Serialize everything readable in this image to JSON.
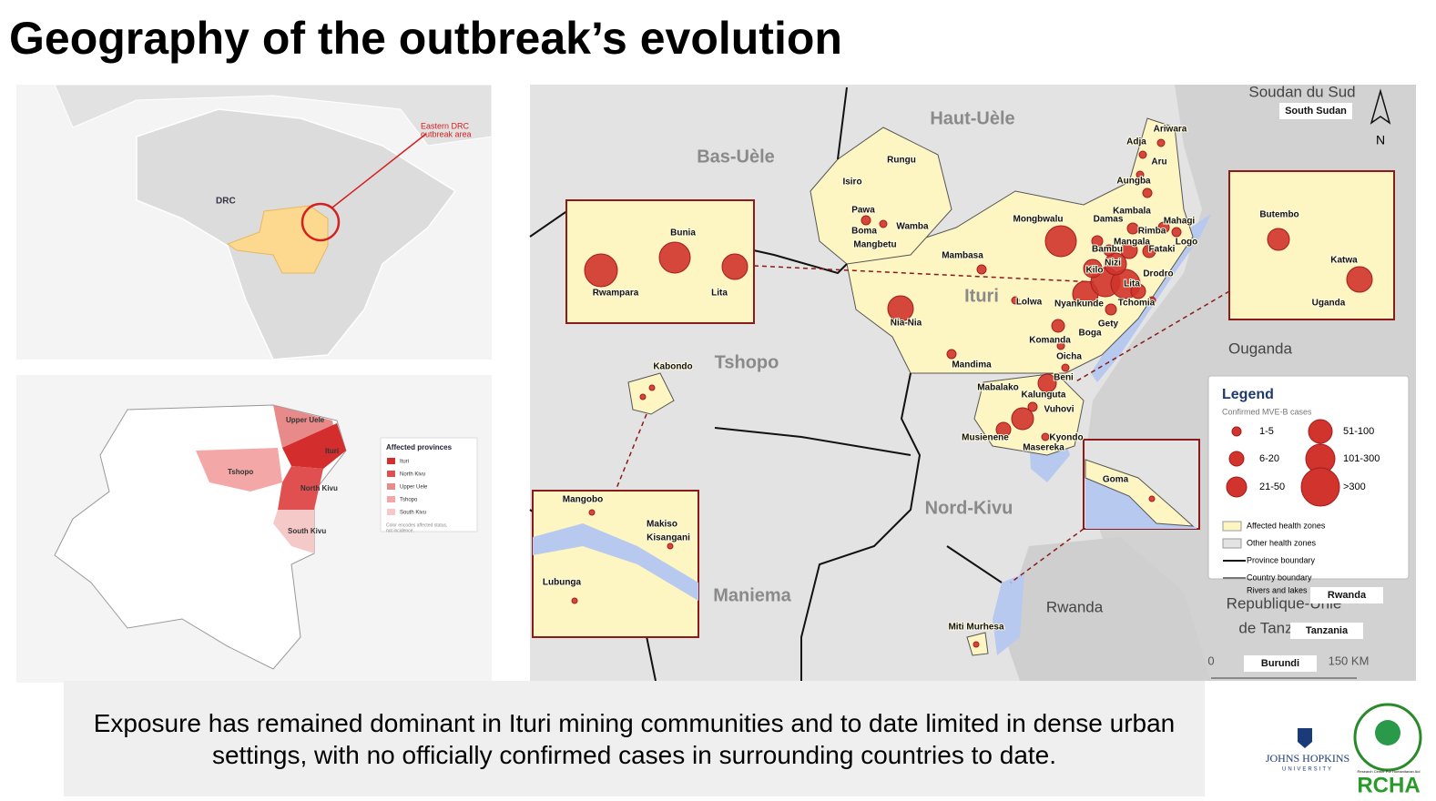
{
  "title": "Geography of the outbreak’s evolution",
  "world_map": {
    "country_label": "DRC",
    "annotation": [
      "Eastern DRC",
      "outbreak area"
    ]
  },
  "province_map": {
    "provinces": [
      "Upper Uele",
      "Ituri",
      "Tshopo",
      "North Kivu",
      "South Kivu"
    ],
    "legend": {
      "title": "Affected provinces",
      "items": [
        "Ituri",
        "North Kivu",
        "Upper Uele",
        "Tshopo",
        "South Kivu"
      ],
      "note": [
        "Color encodes affected status,",
        "not incidence."
      ]
    }
  },
  "main_map": {
    "regions": [
      "Haut-Uèle",
      "Bas-Uèle",
      "Tshopo",
      "Ituri",
      "Nord-Kivu",
      "Maniema"
    ],
    "countries": [
      "Soudan du Sud",
      "Ouganda",
      "Rwanda",
      "Republique-Unie",
      "de Tanz"
    ],
    "country_tags": [
      "South Sudan",
      "Rwanda",
      "Tanzania",
      "Burundi"
    ],
    "health_zones": [
      "Ariwara",
      "Adja",
      "Aru",
      "Aungba",
      "Rungu",
      "Isiro",
      "Pawa",
      "Boma",
      "Wamba",
      "Mangbetu",
      "Kambala",
      "Damas",
      "Mahagi",
      "Mongbwalu",
      "Rimba",
      "Logo",
      "Bambu",
      "Mangala",
      "Fataki",
      "Nizi",
      "Mambasa",
      "Kilo",
      "Drodro",
      "Lita",
      "Lolwa",
      "Nyankunde",
      "Tchomia",
      "Nia-Nia",
      "Gety",
      "Komanda",
      "Boga",
      "Oicha",
      "Mandima",
      "Beni",
      "Mabalako",
      "Kalunguta",
      "Vuhovi",
      "Musienene",
      "Kyondo",
      "Masereka",
      "Kabondo",
      "Miti Murhesa"
    ],
    "insets": {
      "ituri": [
        "Bunia",
        "Rwampara",
        "Lita"
      ],
      "butembo": [
        "Butembo",
        "Katwa",
        "Uganda"
      ],
      "kisangani": [
        "Mangobo",
        "Makiso",
        "Kisangani",
        "Lubunga"
      ],
      "goma": [
        "Goma"
      ]
    },
    "north": "N",
    "scale": [
      "0",
      "150 KM"
    ],
    "legend": {
      "title": "Legend",
      "subtitle": "Confirmed MVE-B cases",
      "classes": [
        "1-5",
        "6-20",
        "21-50",
        "51-100",
        "101-300",
        ">300"
      ],
      "items": [
        "Affected health zones",
        "Other health zones",
        "Province boundary",
        "Country boundary",
        "Rivers and lakes"
      ]
    }
  },
  "caption": "Exposure has remained dominant in Ituri mining communities and to date limited in dense urban settings, with no officially confirmed cases in surrounding countries to date.",
  "logos": {
    "jhu": [
      "JOHNS HOPKINS",
      "UNIVERSITY"
    ],
    "rcha": "RCHA",
    "rcha_sub": "Research Center For Humanitarian Aid"
  }
}
